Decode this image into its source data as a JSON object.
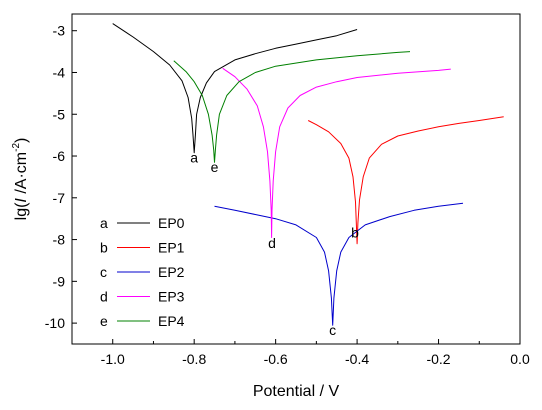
{
  "chart_data": {
    "type": "line",
    "xlabel": "Potential / V",
    "ylabel_prefix": "lg(",
    "ylabel_italic": "I",
    "ylabel_mid": " /A·cm",
    "ylabel_sup": "-2",
    "ylabel_suffix": ")",
    "xlim": [
      -1.1,
      0.0
    ],
    "ylim": [
      -10.5,
      -2.6
    ],
    "xticks": [
      -1.0,
      -0.8,
      -0.6,
      -0.4,
      -0.2,
      0.0
    ],
    "xtick_labels": [
      "-1.0",
      "-0.8",
      "-0.6",
      "-0.4",
      "-0.2",
      "0.0"
    ],
    "yticks": [
      -3,
      -4,
      -5,
      -6,
      -7,
      -8,
      -9,
      -10
    ],
    "ytick_labels": [
      "-3",
      "-4",
      "-5",
      "-6",
      "-7",
      "-8",
      "-9",
      "-10"
    ],
    "grid": false,
    "legend_position": "lower-left",
    "series": [
      {
        "key": "a",
        "name": "EP0",
        "color": "#000000",
        "x": [
          -1.0,
          -0.95,
          -0.9,
          -0.86,
          -0.83,
          -0.815,
          -0.806,
          -0.803,
          -0.8,
          -0.797,
          -0.794,
          -0.785,
          -0.77,
          -0.75,
          -0.7,
          -0.65,
          -0.6,
          -0.55,
          -0.5,
          -0.45,
          -0.4
        ],
        "y": [
          -2.83,
          -3.15,
          -3.5,
          -3.82,
          -4.2,
          -4.6,
          -5.1,
          -5.5,
          -5.92,
          -5.5,
          -5.0,
          -4.6,
          -4.25,
          -3.98,
          -3.7,
          -3.55,
          -3.42,
          -3.32,
          -3.22,
          -3.12,
          -2.97
        ]
      },
      {
        "key": "b",
        "name": "EP1",
        "color": "#ff0000",
        "x": [
          -0.52,
          -0.5,
          -0.47,
          -0.44,
          -0.42,
          -0.41,
          -0.404,
          -0.402,
          -0.4,
          -0.398,
          -0.394,
          -0.385,
          -0.37,
          -0.34,
          -0.3,
          -0.25,
          -0.2,
          -0.15,
          -0.1,
          -0.04
        ],
        "y": [
          -5.15,
          -5.25,
          -5.42,
          -5.7,
          -6.05,
          -6.5,
          -7.1,
          -7.6,
          -8.1,
          -7.6,
          -7.05,
          -6.5,
          -6.05,
          -5.72,
          -5.52,
          -5.4,
          -5.3,
          -5.22,
          -5.15,
          -5.06
        ]
      },
      {
        "key": "c",
        "name": "EP2",
        "color": "#0000cc",
        "x": [
          -0.75,
          -0.7,
          -0.65,
          -0.6,
          -0.55,
          -0.5,
          -0.48,
          -0.47,
          -0.463,
          -0.46,
          -0.457,
          -0.45,
          -0.44,
          -0.42,
          -0.38,
          -0.32,
          -0.26,
          -0.2,
          -0.14
        ],
        "y": [
          -7.2,
          -7.3,
          -7.4,
          -7.5,
          -7.65,
          -7.95,
          -8.3,
          -8.75,
          -9.4,
          -10.05,
          -9.4,
          -8.75,
          -8.3,
          -7.95,
          -7.65,
          -7.45,
          -7.3,
          -7.2,
          -7.13
        ]
      },
      {
        "key": "d",
        "name": "EP3",
        "color": "#ff00ff",
        "x": [
          -0.73,
          -0.7,
          -0.67,
          -0.645,
          -0.63,
          -0.62,
          -0.614,
          -0.611,
          -0.61,
          -0.609,
          -0.606,
          -0.6,
          -0.59,
          -0.57,
          -0.54,
          -0.5,
          -0.45,
          -0.4,
          -0.3,
          -0.2,
          -0.17
        ],
        "y": [
          -3.9,
          -4.1,
          -4.4,
          -4.8,
          -5.3,
          -5.9,
          -6.6,
          -7.3,
          -7.95,
          -7.3,
          -6.6,
          -5.9,
          -5.3,
          -4.85,
          -4.55,
          -4.35,
          -4.22,
          -4.12,
          -4.02,
          -3.95,
          -3.92
        ]
      },
      {
        "key": "e",
        "name": "EP4",
        "color": "#008000",
        "x": [
          -0.85,
          -0.82,
          -0.8,
          -0.78,
          -0.765,
          -0.756,
          -0.752,
          -0.75,
          -0.748,
          -0.745,
          -0.738,
          -0.72,
          -0.69,
          -0.65,
          -0.6,
          -0.5,
          -0.4,
          -0.3,
          -0.27
        ],
        "y": [
          -3.72,
          -3.98,
          -4.22,
          -4.55,
          -5.0,
          -5.5,
          -5.85,
          -6.15,
          -5.85,
          -5.5,
          -5.0,
          -4.55,
          -4.22,
          -4.0,
          -3.85,
          -3.7,
          -3.6,
          -3.52,
          -3.5
        ]
      }
    ],
    "annotations": [
      {
        "text": "a",
        "x": -0.8,
        "y": -6.15
      },
      {
        "text": "e",
        "x": -0.75,
        "y": -6.38
      },
      {
        "text": "d",
        "x": -0.609,
        "y": -8.2
      },
      {
        "text": "b",
        "x": -0.405,
        "y": -7.95
      },
      {
        "text": "c",
        "x": -0.46,
        "y": -10.28
      }
    ]
  }
}
